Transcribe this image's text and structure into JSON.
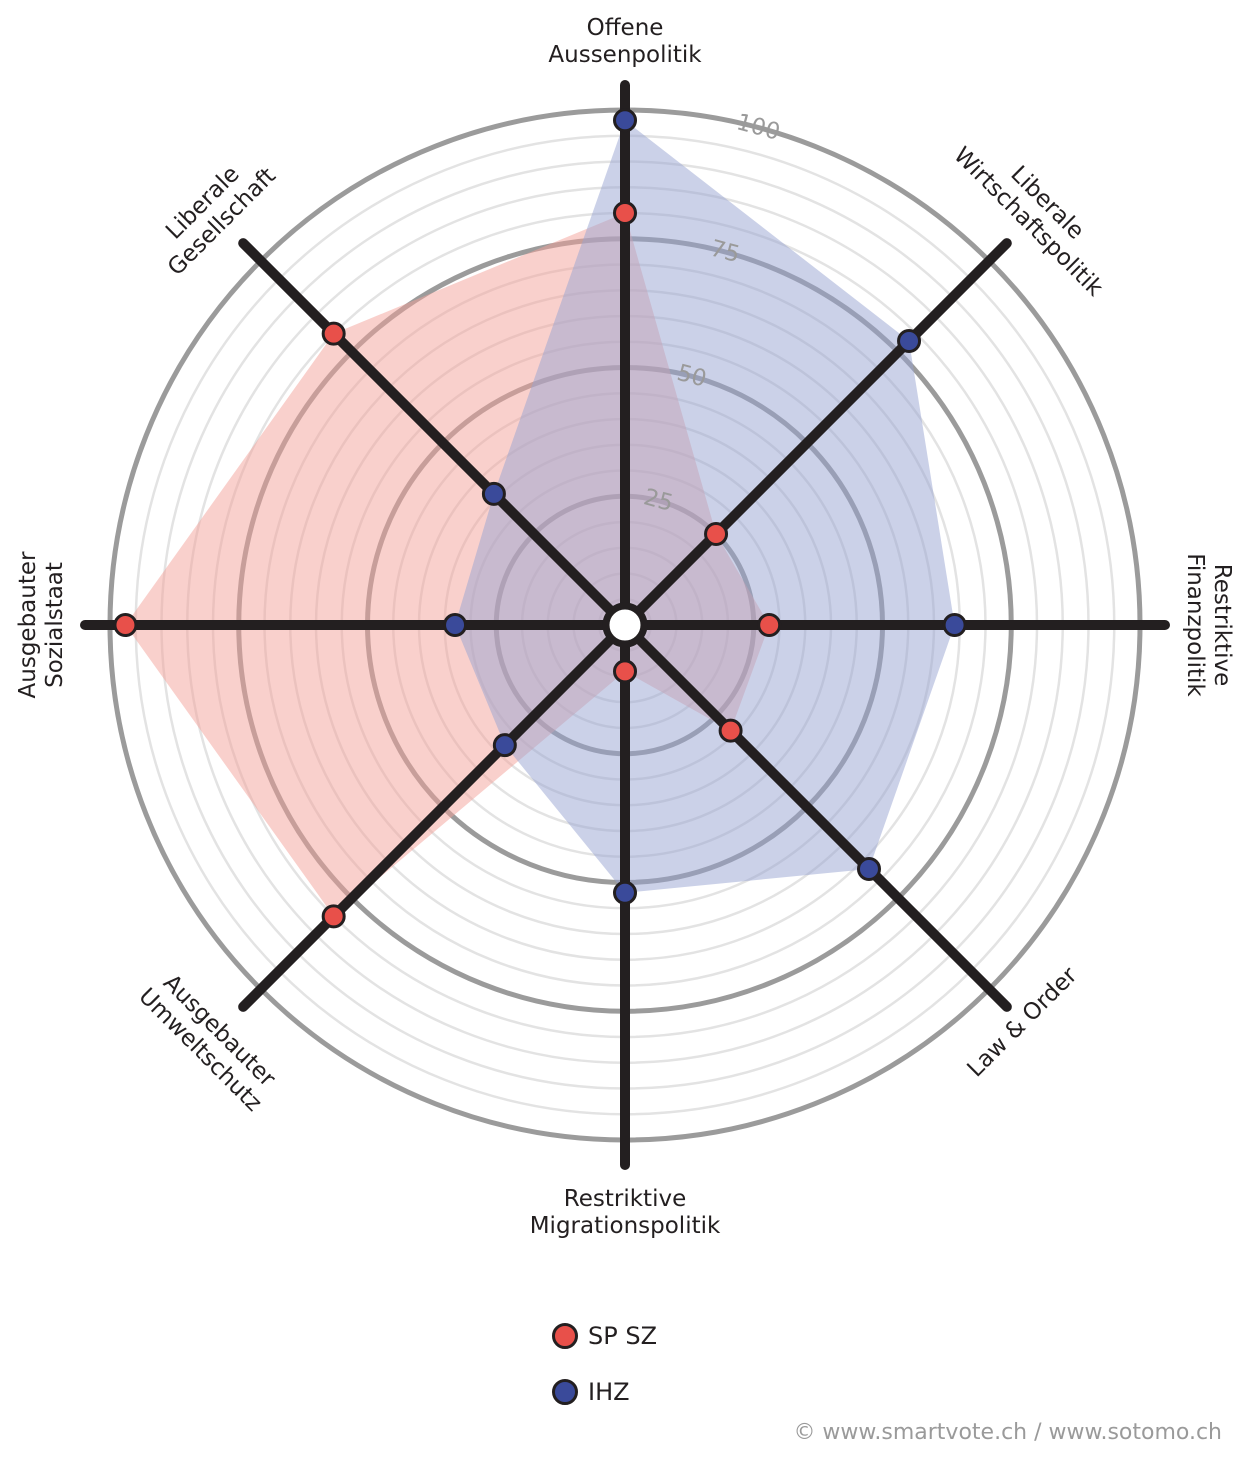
{
  "chart_data": {
    "type": "radar",
    "axes": [
      [
        "Offene",
        "Aussenpolitik"
      ],
      [
        "Liberale",
        "Wirtschaftspolitik"
      ],
      [
        "Restriktive",
        "Finanzpolitik"
      ],
      [
        "Law & Order"
      ],
      [
        "Restriktive",
        "Migrationspolitik"
      ],
      [
        "Ausgebauter",
        "Umweltschutz"
      ],
      [
        "Ausgebauter",
        "Sozialstaat"
      ],
      [
        "Liberale",
        "Gesellschaft"
      ]
    ],
    "scale_ticks": [
      "25",
      "50",
      "75",
      "100"
    ],
    "range": [
      0,
      100
    ],
    "series": [
      {
        "name": "SP SZ",
        "color": "#e8504a",
        "fill": "#f4a199",
        "values": [
          80,
          25,
          28,
          29,
          9,
          80,
          97,
          80
        ]
      },
      {
        "name": "IHZ",
        "color": "#3a4a9a",
        "fill": "#98a3d1",
        "values": [
          98,
          78,
          64,
          67,
          52,
          33,
          33,
          36
        ]
      }
    ]
  },
  "credit": "© www.smartvote.ch / www.sotomo.ch"
}
